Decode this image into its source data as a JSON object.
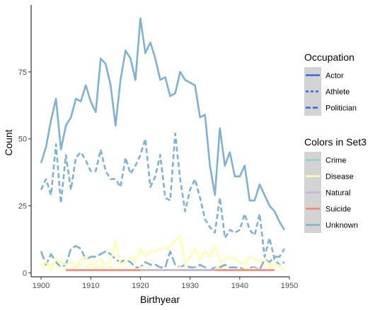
{
  "chart_data": {
    "type": "line",
    "xlabel": "Birthyear",
    "ylabel": "Count",
    "xlim": [
      1898,
      1950
    ],
    "ylim": [
      -1.5,
      100
    ],
    "xticks": [
      1900,
      1910,
      1920,
      1930,
      1940,
      1950
    ],
    "yticks": [
      0,
      25,
      50,
      75
    ],
    "grid": false,
    "legend_occupation": {
      "title": "Occupation",
      "entries": [
        {
          "label": "Actor",
          "linetype": "solid"
        },
        {
          "label": "Athlete",
          "linetype": "dashed"
        },
        {
          "label": "Politician",
          "linetype": "longdash"
        }
      ],
      "color": "#3366ee"
    },
    "legend_colors": {
      "title": "Colors in Set3",
      "entries": [
        {
          "label": "Crime",
          "color": "#8dd3c7"
        },
        {
          "label": "Disease",
          "color": "#ffffb3"
        },
        {
          "label": "Natural",
          "color": "#bebada"
        },
        {
          "label": "Suicide",
          "color": "#fb8072"
        },
        {
          "label": "Unknown",
          "color": "#80b1d3"
        }
      ]
    },
    "series": [
      {
        "cause": "Unknown",
        "occupation": "Actor",
        "color": "#80b1d3",
        "linetype": "solid",
        "x": [
          1900,
          1901,
          1902,
          1903,
          1904,
          1905,
          1906,
          1907,
          1908,
          1909,
          1910,
          1911,
          1912,
          1913,
          1914,
          1915,
          1916,
          1917,
          1918,
          1919,
          1920,
          1921,
          1922,
          1923,
          1924,
          1925,
          1926,
          1927,
          1928,
          1929,
          1930,
          1931,
          1932,
          1933,
          1934,
          1935,
          1936,
          1937,
          1938,
          1939,
          1940,
          1941,
          1942,
          1943,
          1944,
          1945,
          1946,
          1947,
          1948,
          1949
        ],
        "y": [
          41,
          47,
          57,
          65,
          46,
          55,
          58,
          65,
          64,
          70,
          64,
          60,
          80,
          78,
          70,
          55,
          72,
          83,
          80,
          72,
          95,
          82,
          86,
          80,
          72,
          73,
          66,
          67,
          75,
          72,
          71,
          70,
          58,
          59,
          40,
          29,
          54,
          40,
          45,
          36,
          36,
          40,
          27,
          27,
          33,
          29,
          25,
          23,
          19,
          16
        ]
      },
      {
        "cause": "Unknown",
        "occupation": "Athlete",
        "color": "#80b1d3",
        "linetype": "dashed",
        "x": [
          1900,
          1901,
          1902,
          1903,
          1904,
          1905,
          1906,
          1907,
          1908,
          1909,
          1910,
          1911,
          1912,
          1913,
          1914,
          1915,
          1916,
          1917,
          1918,
          1919,
          1920,
          1921,
          1922,
          1923,
          1924,
          1925,
          1926,
          1927,
          1928,
          1929,
          1930,
          1931,
          1932,
          1933,
          1934,
          1935,
          1936,
          1937,
          1938,
          1939,
          1940,
          1941,
          1942,
          1943,
          1944,
          1945,
          1946,
          1947,
          1948,
          1949
        ],
        "y": [
          31,
          35,
          29,
          48,
          26,
          44,
          31,
          43,
          45,
          42,
          38,
          38,
          46,
          38,
          35,
          35,
          32,
          43,
          37,
          40,
          44,
          50,
          32,
          36,
          44,
          28,
          27,
          52,
          35,
          23,
          31,
          35,
          28,
          20,
          17,
          15,
          28,
          13,
          16,
          15,
          16,
          22,
          16,
          14,
          22,
          6,
          13,
          5,
          3,
          4
        ]
      },
      {
        "cause": "Unknown",
        "occupation": "Politician",
        "color": "#80b1d3",
        "linetype": "longdash",
        "x": [
          1900,
          1901,
          1902,
          1903,
          1904,
          1905,
          1906,
          1907,
          1908,
          1909,
          1910,
          1911,
          1912,
          1913,
          1914,
          1915,
          1916,
          1917,
          1918,
          1919,
          1920,
          1921,
          1922,
          1923,
          1924,
          1925,
          1926,
          1927,
          1928,
          1929,
          1930,
          1931,
          1932,
          1933,
          1934,
          1935,
          1936,
          1937,
          1938,
          1939,
          1940,
          1941,
          1942,
          1943,
          1944,
          1945,
          1946,
          1947,
          1948,
          1949
        ],
        "y": [
          8,
          3,
          7,
          4,
          2,
          3,
          9,
          10,
          9,
          5,
          6,
          6,
          7,
          8,
          7,
          5,
          4,
          5,
          4,
          2,
          2,
          4,
          3,
          3,
          2,
          2,
          8,
          3,
          2,
          3,
          2,
          2,
          3,
          2,
          1,
          2,
          2,
          3,
          2,
          2,
          2,
          1,
          2,
          2,
          1,
          5,
          4,
          6,
          6,
          9
        ]
      },
      {
        "cause": "Disease",
        "occupation": "Actor",
        "color": "#ffffb3",
        "linetype": "solid",
        "x": [
          1900,
          1901,
          1902,
          1903,
          1904,
          1905,
          1906,
          1907,
          1908,
          1909,
          1910,
          1911,
          1912,
          1913,
          1914,
          1915,
          1916,
          1917,
          1918,
          1919,
          1920,
          1921,
          1922,
          1923,
          1924,
          1925,
          1926,
          1927,
          1928,
          1929,
          1930,
          1931,
          1932,
          1933,
          1934,
          1935,
          1936,
          1937,
          1938,
          1939,
          1940,
          1941,
          1942,
          1943,
          1944,
          1945,
          1946,
          1947,
          1948,
          1949
        ],
        "y": [
          3,
          4,
          1,
          5,
          4,
          3,
          4,
          2,
          5,
          6,
          3,
          4,
          5,
          3,
          4,
          12,
          3,
          4,
          6,
          4,
          9,
          6,
          8,
          8,
          9,
          9,
          10,
          12,
          14,
          3,
          6,
          9,
          5,
          8,
          6,
          10,
          4,
          5,
          6,
          5,
          4,
          3,
          6,
          5,
          4,
          5,
          3,
          3,
          2,
          1
        ]
      },
      {
        "cause": "Disease",
        "occupation": "Athlete",
        "color": "#ffffb3",
        "linetype": "dashed",
        "x": [
          1900,
          1902,
          1904,
          1906,
          1908,
          1910,
          1912,
          1914,
          1916,
          1918,
          1920,
          1922,
          1924,
          1926,
          1928,
          1930,
          1932,
          1934,
          1936,
          1938,
          1940,
          1942,
          1944,
          1946,
          1948
        ],
        "y": [
          2,
          3,
          2,
          1,
          3,
          2,
          2,
          2,
          1,
          1,
          2,
          2,
          1,
          1,
          2,
          1,
          2,
          1,
          2,
          1,
          1,
          2,
          1,
          2,
          3
        ]
      },
      {
        "cause": "Suicide",
        "occupation": "Actor",
        "color": "#fb8072",
        "linetype": "solid",
        "x": [
          1905,
          1910,
          1915,
          1920,
          1925,
          1930,
          1935,
          1940,
          1945,
          1947
        ],
        "y": [
          1,
          1,
          1,
          1,
          1,
          1,
          1,
          1,
          1,
          1
        ]
      },
      {
        "cause": "Natural",
        "occupation": "Actor",
        "color": "#bebada",
        "linetype": "solid",
        "x": [
          1920,
          1925,
          1930,
          1935
        ],
        "y": [
          1,
          1,
          1,
          1
        ]
      }
    ]
  }
}
